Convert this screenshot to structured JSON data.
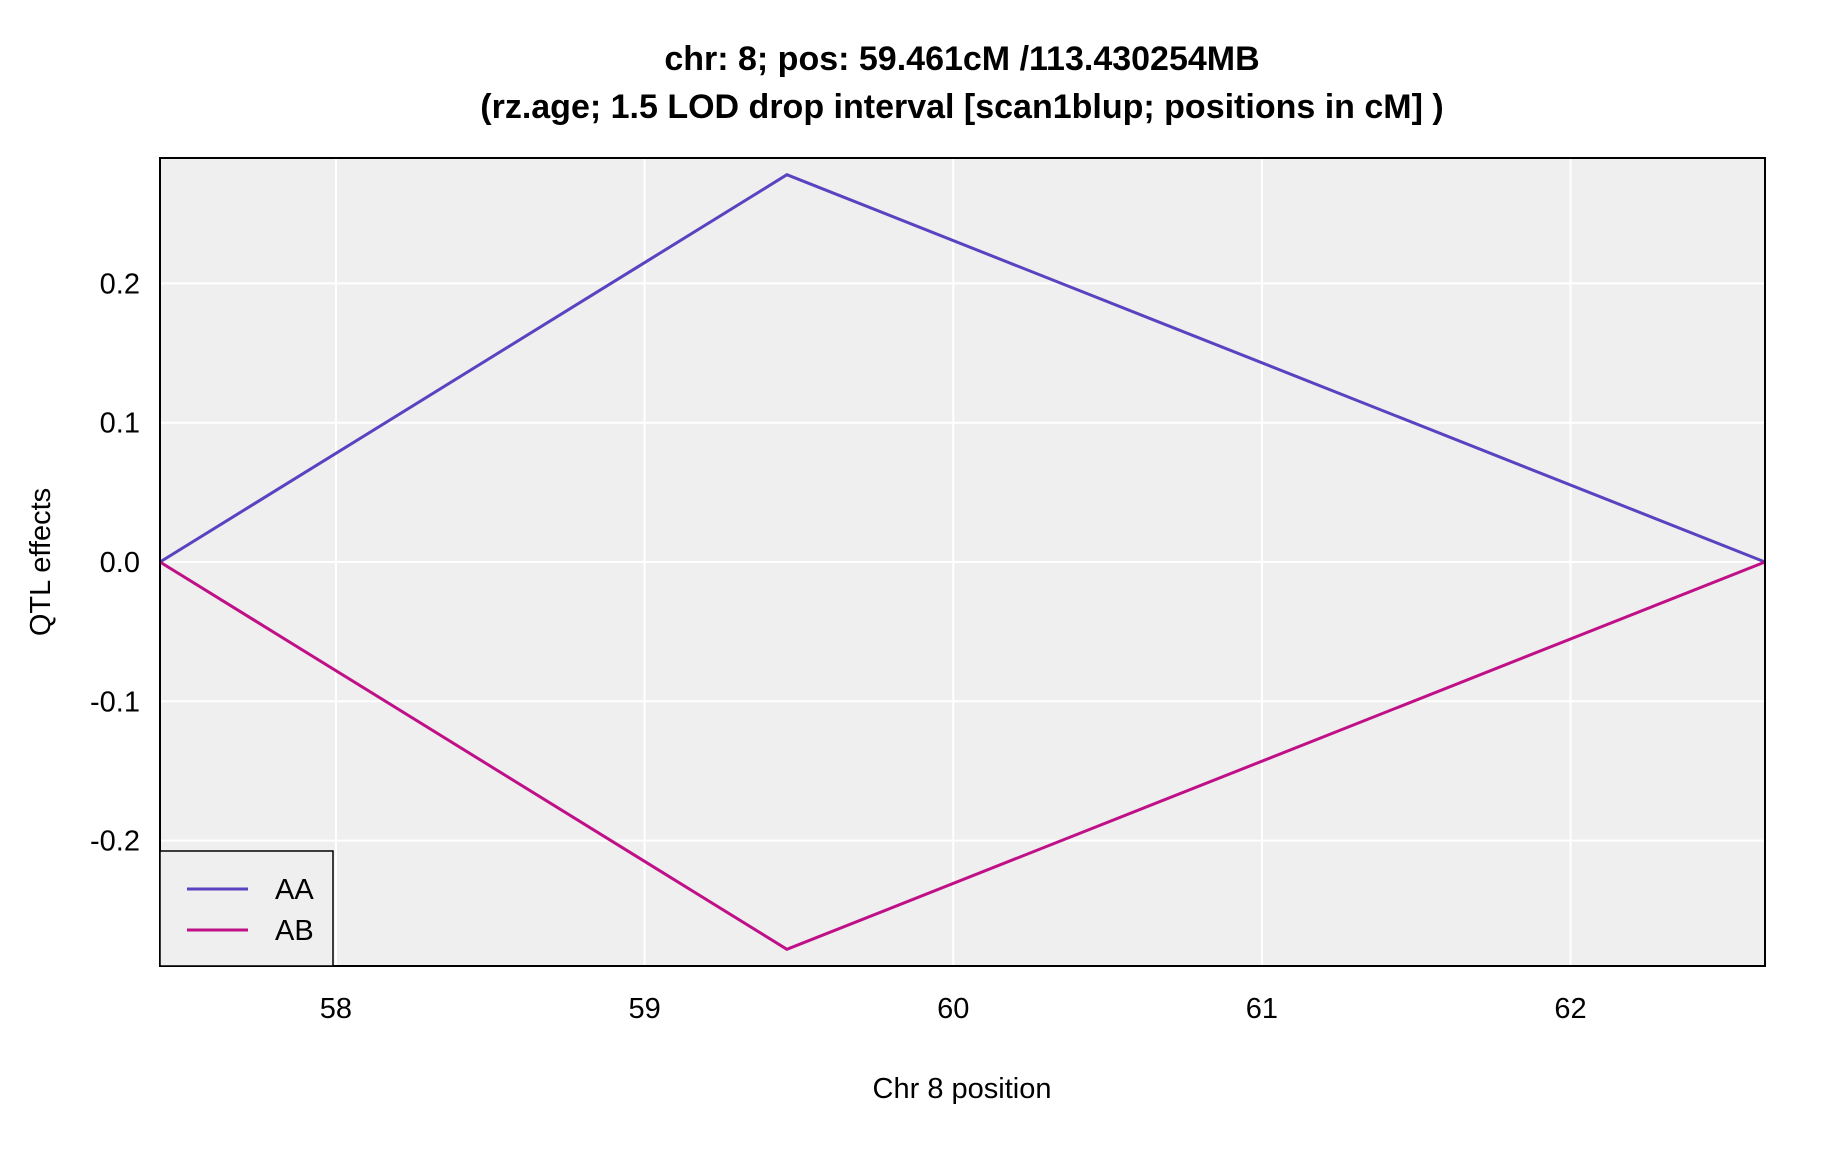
{
  "chart_data": {
    "type": "line",
    "title": "chr: 8; pos: 59.461cM /113.430254MB",
    "subtitle": "(rz.age; 1.5 LOD drop interval [scan1blup; positions in cM] )",
    "xlabel": "Chr 8 position",
    "ylabel": "QTL effects",
    "xlim": [
      57.43,
      62.63
    ],
    "ylim": [
      -0.29,
      0.29
    ],
    "x_ticks": [
      58,
      59,
      60,
      61,
      62
    ],
    "x_tick_labels": [
      "58",
      "59",
      "60",
      "61",
      "62"
    ],
    "y_ticks": [
      -0.2,
      -0.1,
      0.0,
      0.1,
      0.2
    ],
    "y_tick_labels": [
      "-0.2",
      "-0.1",
      "0.0",
      "0.1",
      "0.2"
    ],
    "grid": true,
    "background": "#efefef",
    "legend_position": "bottom-left",
    "series": [
      {
        "name": "AA",
        "color": "#5a42c0",
        "x": [
          57.43,
          59.461,
          62.63
        ],
        "y": [
          0.0,
          0.278,
          0.0
        ]
      },
      {
        "name": "AB",
        "color": "#c01088",
        "x": [
          57.43,
          59.461,
          62.63
        ],
        "y": [
          0.0,
          -0.278,
          0.0
        ]
      }
    ]
  }
}
